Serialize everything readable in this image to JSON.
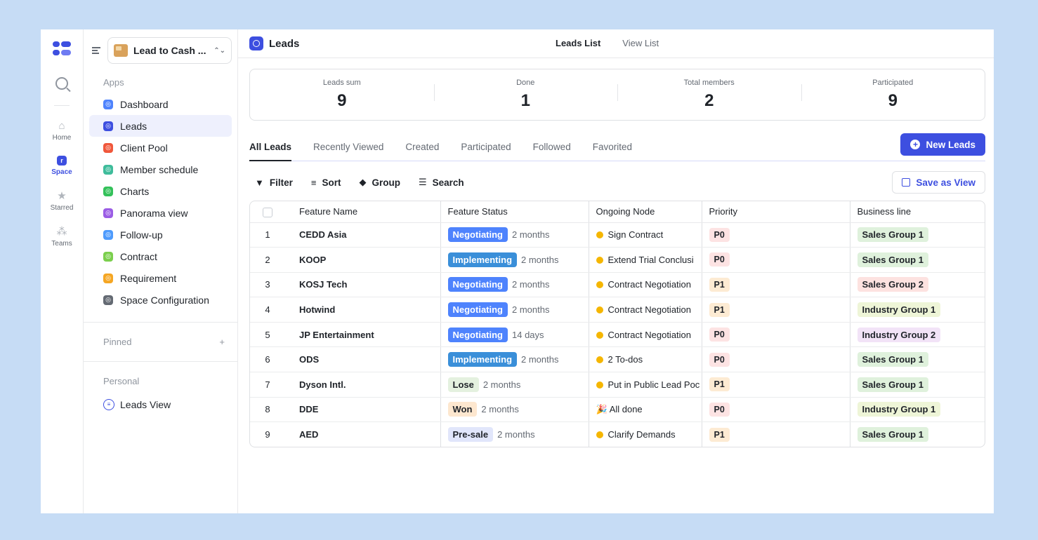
{
  "rail": {
    "items": [
      {
        "label": "Home",
        "icon": "home-icon"
      },
      {
        "label": "Space",
        "icon": "space-icon"
      },
      {
        "label": "Starred",
        "icon": "star-icon"
      },
      {
        "label": "Teams",
        "icon": "teams-icon"
      }
    ]
  },
  "sidebar": {
    "workspace": "Lead to Cash ...",
    "apps_label": "Apps",
    "apps": [
      {
        "label": "Dashboard",
        "color": "#4e83fd"
      },
      {
        "label": "Leads",
        "color": "#3d4fe0"
      },
      {
        "label": "Client Pool",
        "color": "#f0573b"
      },
      {
        "label": "Member schedule",
        "color": "#3fbc9b"
      },
      {
        "label": "Charts",
        "color": "#34c15a"
      },
      {
        "label": "Panorama view",
        "color": "#9b5de5"
      },
      {
        "label": "Follow-up",
        "color": "#4e9bfd"
      },
      {
        "label": "Contract",
        "color": "#7bcf4d"
      },
      {
        "label": "Requirement",
        "color": "#f5a623"
      },
      {
        "label": "Space Configuration",
        "color": "#646a73"
      }
    ],
    "pinned_label": "Pinned",
    "pinned_add": "+",
    "personal_label": "Personal",
    "personal_items": [
      "Leads View"
    ]
  },
  "topbar": {
    "title": "Leads",
    "tabs": [
      "Leads List",
      "View List"
    ]
  },
  "stats": [
    {
      "label": "Leads sum",
      "value": "9"
    },
    {
      "label": "Done",
      "value": "1"
    },
    {
      "label": "Total members",
      "value": "2"
    },
    {
      "label": "Participated",
      "value": "9"
    }
  ],
  "list_tabs": [
    "All Leads",
    "Recently Viewed",
    "Created",
    "Participated",
    "Followed",
    "Favorited"
  ],
  "new_button": "New Leads",
  "toolbar": {
    "filter": "Filter",
    "sort": "Sort",
    "group": "Group",
    "search": "Search",
    "save_view": "Save as View"
  },
  "table": {
    "columns": [
      "Feature Name",
      "Feature Status",
      "Ongoing Node",
      "Priority",
      "Business line"
    ],
    "rows": [
      {
        "idx": "1",
        "name": "CEDD Asia",
        "status": "Negotiating",
        "status_type": "neg",
        "duration": "2 months",
        "node": "Sign Contract",
        "node_done": false,
        "priority": "P0",
        "business": "Sales Group 1",
        "biz_type": "g"
      },
      {
        "idx": "2",
        "name": "KOOP",
        "status": "Implementing",
        "status_type": "imp",
        "duration": "2 months",
        "node": "Extend Trial Conclusi",
        "node_done": false,
        "priority": "P0",
        "business": "Sales Group 1",
        "biz_type": "g"
      },
      {
        "idx": "3",
        "name": "KOSJ Tech",
        "status": "Negotiating",
        "status_type": "neg",
        "duration": "2 months",
        "node": "Contract Negotiation",
        "node_done": false,
        "priority": "P1",
        "business": "Sales Group 2",
        "biz_type": "r"
      },
      {
        "idx": "4",
        "name": "Hotwind",
        "status": "Negotiating",
        "status_type": "neg",
        "duration": "2 months",
        "node": "Contract Negotiation",
        "node_done": false,
        "priority": "P1",
        "business": "Industry Group 1",
        "biz_type": "y"
      },
      {
        "idx": "5",
        "name": "JP Entertainment",
        "status": "Negotiating",
        "status_type": "neg",
        "duration": "14 days",
        "node": "Contract Negotiation",
        "node_done": false,
        "priority": "P0",
        "business": "Industry Group 2",
        "biz_type": "p"
      },
      {
        "idx": "6",
        "name": "ODS",
        "status": "Implementing",
        "status_type": "imp",
        "duration": "2 months",
        "node": "2 To-dos",
        "node_done": false,
        "priority": "P0",
        "business": "Sales Group 1",
        "biz_type": "g"
      },
      {
        "idx": "7",
        "name": "Dyson Intl.",
        "status": "Lose",
        "status_type": "lose",
        "duration": "2 months",
        "node": "Put in Public Lead Poc",
        "node_done": false,
        "priority": "P1",
        "business": "Sales Group 1",
        "biz_type": "g"
      },
      {
        "idx": "8",
        "name": "DDE",
        "status": "Won",
        "status_type": "won",
        "duration": "2 months",
        "node": "All done",
        "node_done": true,
        "priority": "P0",
        "business": "Industry Group 1",
        "biz_type": "y"
      },
      {
        "idx": "9",
        "name": "AED",
        "status": "Pre-sale",
        "status_type": "pre",
        "duration": "2 months",
        "node": "Clarify Demands",
        "node_done": false,
        "priority": "P1",
        "business": "Sales Group 1",
        "biz_type": "g"
      }
    ]
  }
}
